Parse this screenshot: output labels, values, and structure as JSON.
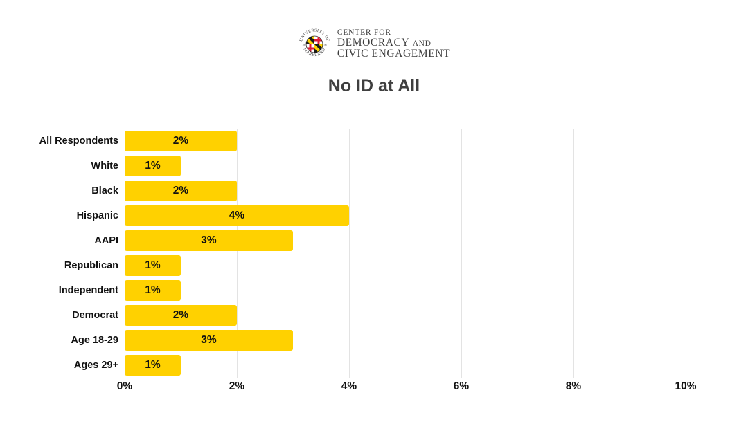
{
  "header": {
    "logo": {
      "seal_top_text": "UNIVERSITY OF",
      "seal_bottom_text": "MARYLAND",
      "seal_year_left": "18",
      "seal_year_right": "56",
      "line1": "CENTER FOR",
      "line2_main": "DEMOCRACY",
      "line2_small": "AND",
      "line3": "CIVIC ENGAGEMENT"
    },
    "title": "No ID at All"
  },
  "chart_data": {
    "type": "bar",
    "orientation": "horizontal",
    "title": "No ID at All",
    "categories": [
      "All Respondents",
      "White",
      "Black",
      "Hispanic",
      "AAPI",
      "Republican",
      "Independent",
      "Democrat",
      "Age 18-29",
      "Ages 29+"
    ],
    "values": [
      2,
      1,
      2,
      4,
      3,
      1,
      1,
      2,
      3,
      1
    ],
    "value_labels": [
      "2%",
      "1%",
      "2%",
      "4%",
      "3%",
      "1%",
      "1%",
      "2%",
      "3%",
      "1%"
    ],
    "x_ticks": [
      "0%",
      "2%",
      "4%",
      "6%",
      "8%",
      "10%"
    ],
    "x_tick_values": [
      0,
      2,
      4,
      6,
      8,
      10
    ],
    "xlim": [
      0,
      10
    ],
    "grid": true,
    "legend": false,
    "colors": {
      "bar": "#FFD100",
      "gridline": "#e3e3e3",
      "label_text": "#111111",
      "title_text": "#3f3f3f",
      "seal_red": "#E21833",
      "seal_gold": "#FFD200",
      "seal_black": "#1a1a1a"
    }
  }
}
